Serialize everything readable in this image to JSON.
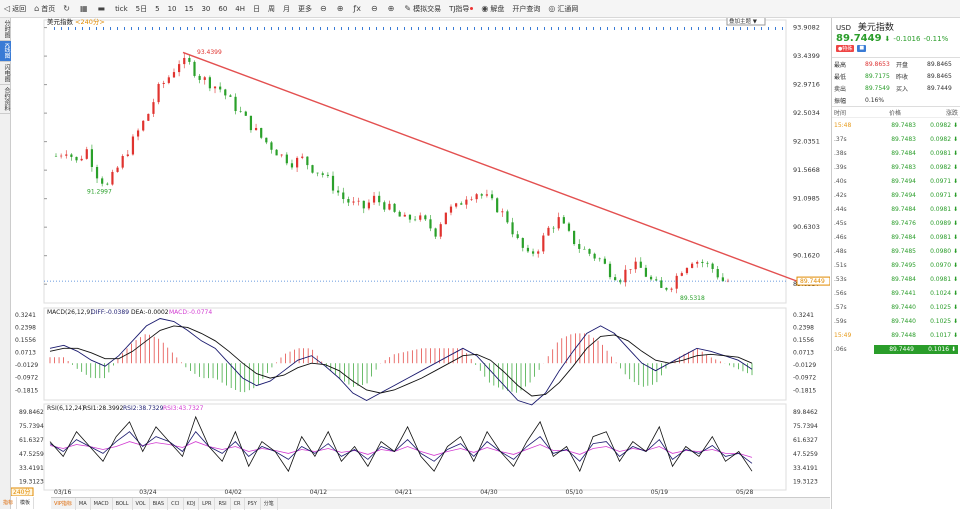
{
  "toolbar": {
    "items": [
      {
        "icon": "◁",
        "label": "返回"
      },
      {
        "icon": "⌂",
        "label": "首页"
      },
      {
        "icon": "↻",
        "label": ""
      },
      {
        "icon": "▦",
        "label": ""
      },
      {
        "icon": "▬",
        "label": ""
      }
    ],
    "timeframes": [
      "tick",
      "5日",
      "5",
      "10",
      "15",
      "30",
      "60",
      "4H",
      "日",
      "周",
      "月"
    ],
    "more": "更多",
    "tools": [
      {
        "icon": "⊖",
        "label": ""
      },
      {
        "icon": "⊕",
        "label": ""
      },
      {
        "icon": "ƒx",
        "label": ""
      },
      {
        "icon": "⊖",
        "label": ""
      },
      {
        "icon": "⊕",
        "label": ""
      },
      {
        "icon": "✎",
        "label": "模拟交易"
      },
      {
        "icon": "",
        "label": "TJ指导"
      },
      {
        "icon": "◉",
        "label": "解盘"
      },
      {
        "icon": "",
        "label": "开户查询"
      },
      {
        "icon": "◎",
        "label": "汇通网"
      }
    ]
  },
  "left_tabs": [
    "分时图",
    "K线图",
    "闪电图",
    "合约资料"
  ],
  "main_legend": {
    "name": "美元指数",
    "period": "<240分>"
  },
  "overlay_select": "叠加主题",
  "price_axis": [
    "93.9082",
    "93.4399",
    "92.9716",
    "92.5034",
    "92.0351",
    "91.5668",
    "91.0985",
    "90.6303",
    "90.1620",
    "89.6937"
  ],
  "current_price_tag": "89.7449",
  "macd_legend": {
    "label": "MACD(26,12,9)",
    "diff": "DIFF:-0.0389",
    "dea": "DEA:-0.0002",
    "macd": "MACD:-0.0774"
  },
  "macd_axis": [
    "0.3241",
    "0.2398",
    "0.1556",
    "0.0713",
    "-0.0129",
    "-0.0972",
    "-0.1815"
  ],
  "rsi_legend": {
    "label": "RSI(6,12,24)",
    "rsi1": "RSI1:28.3992",
    "rsi2": "RSI2:38.7329",
    "rsi3": "RSI3:43.7327"
  },
  "rsi_axis": [
    "89.8462",
    "75.7394",
    "61.6327",
    "47.5259",
    "33.4191",
    "19.3123"
  ],
  "date_labels": [
    "03/16",
    "03/24",
    "04/02",
    "04/12",
    "04/21",
    "04/30",
    "05/10",
    "05/19",
    "05/28"
  ],
  "period_badge": "240分",
  "bottom_tabs": [
    "指标",
    "模板"
  ],
  "indicators": [
    "VIP指标",
    "MA",
    "MACD",
    "BOLL",
    "VOL",
    "BIAS",
    "CCI",
    "KDJ",
    "LPR",
    "RSI",
    "CR",
    "PSY",
    "分笔"
  ],
  "colors": {
    "up": "#e0332f",
    "down": "#2aa02a",
    "trend": "#e35050",
    "diff": "#1a1a6e",
    "dea": "#111111",
    "rsi3": "#d23bd2"
  },
  "chart_data": {
    "type": "candlestick",
    "title": "美元指数",
    "ylim": [
      89.5,
      94.0
    ],
    "annotations": [
      {
        "label": "93.4399",
        "type": "high"
      },
      {
        "label": "91.2997",
        "type": "low"
      },
      {
        "label": "89.5318",
        "type": "low"
      }
    ],
    "trendline": {
      "from": 93.5,
      "to": 89.72
    },
    "close_path": [
      91.8,
      91.9,
      91.7,
      91.9,
      91.5,
      91.3,
      91.6,
      91.9,
      92.2,
      92.5,
      92.9,
      93.1,
      93.35,
      93.3,
      93.1,
      93.0,
      92.9,
      92.7,
      92.5,
      92.3,
      92.1,
      91.95,
      91.8,
      91.7,
      91.75,
      91.6,
      91.5,
      91.3,
      91.1,
      91.0,
      90.95,
      91.1,
      91.0,
      90.85,
      90.75,
      90.8,
      90.7,
      90.55,
      90.9,
      90.95,
      91.15,
      91.2,
      91.1,
      90.95,
      90.75,
      90.4,
      90.15,
      90.3,
      90.6,
      90.75,
      90.5,
      90.3,
      90.2,
      90.1,
      89.9,
      89.8,
      90.0,
      89.95,
      89.75,
      89.6,
      89.7,
      89.95,
      90.1,
      90.05,
      89.95,
      89.75
    ],
    "macd_diff": [
      0.1,
      0.12,
      0.08,
      0.02,
      -0.02,
      0.05,
      0.15,
      0.25,
      0.3,
      0.28,
      0.22,
      0.15,
      0.1,
      0.0,
      -0.1,
      -0.15,
      -0.12,
      -0.05,
      0.02,
      0.05,
      -0.02,
      -0.1,
      -0.2,
      -0.25,
      -0.2,
      -0.15,
      -0.1,
      -0.05,
      0.0,
      0.05,
      0.1,
      0.05,
      -0.05,
      -0.15,
      -0.25,
      -0.28,
      -0.2,
      -0.05,
      0.08,
      0.2,
      0.25,
      0.2,
      0.1,
      0.0,
      -0.05,
      0.0,
      0.05,
      0.1,
      0.08,
      0.05,
      0.02,
      -0.04
    ],
    "macd_dea": [
      0.08,
      0.1,
      0.1,
      0.07,
      0.03,
      0.03,
      0.08,
      0.15,
      0.22,
      0.25,
      0.24,
      0.2,
      0.15,
      0.08,
      0.0,
      -0.07,
      -0.1,
      -0.08,
      -0.03,
      0.0,
      -0.01,
      -0.05,
      -0.12,
      -0.18,
      -0.2,
      -0.18,
      -0.14,
      -0.1,
      -0.05,
      0.0,
      0.05,
      0.06,
      0.02,
      -0.06,
      -0.15,
      -0.22,
      -0.21,
      -0.13,
      -0.02,
      0.1,
      0.18,
      0.19,
      0.15,
      0.08,
      0.02,
      0.0,
      0.02,
      0.05,
      0.06,
      0.05,
      0.04,
      0.0
    ],
    "rsi1": [
      60,
      45,
      70,
      55,
      40,
      65,
      80,
      50,
      75,
      60,
      45,
      85,
      55,
      40,
      70,
      35,
      60,
      50,
      30,
      65,
      45,
      70,
      40,
      55,
      35,
      60,
      50,
      75,
      45,
      30,
      55,
      65,
      40,
      70,
      50,
      35,
      60,
      80,
      45,
      55,
      30,
      65,
      70,
      40,
      60,
      50,
      75,
      35,
      55,
      45,
      65,
      40,
      50,
      30
    ],
    "rsi2": [
      58,
      50,
      62,
      55,
      48,
      60,
      70,
      55,
      65,
      60,
      50,
      70,
      55,
      48,
      60,
      45,
      55,
      50,
      42,
      55,
      48,
      58,
      45,
      52,
      42,
      55,
      50,
      62,
      48,
      40,
      52,
      58,
      45,
      60,
      50,
      42,
      55,
      65,
      48,
      52,
      40,
      58,
      60,
      45,
      55,
      50,
      62,
      42,
      52,
      48,
      56,
      45,
      48,
      38
    ],
    "rsi3": [
      56,
      53,
      57,
      55,
      52,
      55,
      60,
      56,
      59,
      57,
      54,
      60,
      55,
      52,
      55,
      50,
      53,
      51,
      48,
      52,
      50,
      53,
      49,
      51,
      47,
      52,
      50,
      55,
      50,
      46,
      50,
      53,
      49,
      54,
      50,
      47,
      52,
      57,
      51,
      51,
      47,
      53,
      55,
      50,
      53,
      51,
      55,
      48,
      51,
      50,
      52,
      48,
      48,
      44
    ]
  },
  "right_panel": {
    "code": "USD",
    "name": "美元指数",
    "price": "89.7449",
    "arrow": "⬇",
    "change": "-0.1016",
    "pct": "-0.11%",
    "badge1": "●特殊",
    "badge2": "■",
    "stats": [
      {
        "k1": "最高",
        "v1": "89.8653",
        "k2": "开盘",
        "v2": "89.8465"
      },
      {
        "k1": "最低",
        "v1": "89.7175",
        "k2": "昨收",
        "v2": "89.8465"
      },
      {
        "k1": "卖出",
        "v1": "89.7549",
        "k2": "买入",
        "v2": "89.7449"
      },
      {
        "k1": "振幅",
        "v1": "0.16%",
        "k2": "",
        "v2": ""
      }
    ],
    "table_header": [
      "时间",
      "价格",
      "涨跌"
    ],
    "ticks": [
      {
        "t": "15:48",
        "p": "89.7483",
        "c": "0.0982 ⬇",
        "o": true
      },
      {
        "t": ".37s",
        "p": "89.7483",
        "c": "0.0982 ⬇"
      },
      {
        "t": ".38s",
        "p": "89.7484",
        "c": "0.0981 ⬇"
      },
      {
        "t": ".39s",
        "p": "89.7483",
        "c": "0.0982 ⬇"
      },
      {
        "t": ".40s",
        "p": "89.7494",
        "c": "0.0971 ⬇"
      },
      {
        "t": ".42s",
        "p": "89.7494",
        "c": "0.0971 ⬇"
      },
      {
        "t": ".44s",
        "p": "89.7484",
        "c": "0.0981 ⬇"
      },
      {
        "t": ".45s",
        "p": "89.7476",
        "c": "0.0989 ⬇"
      },
      {
        "t": ".46s",
        "p": "89.7484",
        "c": "0.0981 ⬇"
      },
      {
        "t": ".48s",
        "p": "89.7485",
        "c": "0.0980 ⬇"
      },
      {
        "t": ".51s",
        "p": "89.7495",
        "c": "0.0970 ⬇"
      },
      {
        "t": ".53s",
        "p": "89.7484",
        "c": "0.0981 ⬇"
      },
      {
        "t": ".56s",
        "p": "89.7441",
        "c": "0.1024 ⬇"
      },
      {
        "t": ".57s",
        "p": "89.7440",
        "c": "0.1025 ⬇"
      },
      {
        "t": ".59s",
        "p": "89.7440",
        "c": "0.1025 ⬇"
      },
      {
        "t": "15:49",
        "p": "89.7448",
        "c": "0.1017 ⬇",
        "o": true
      },
      {
        "t": ".06s",
        "p": "89.7449",
        "c": "0.1016 ⬇",
        "hl": true
      }
    ]
  }
}
